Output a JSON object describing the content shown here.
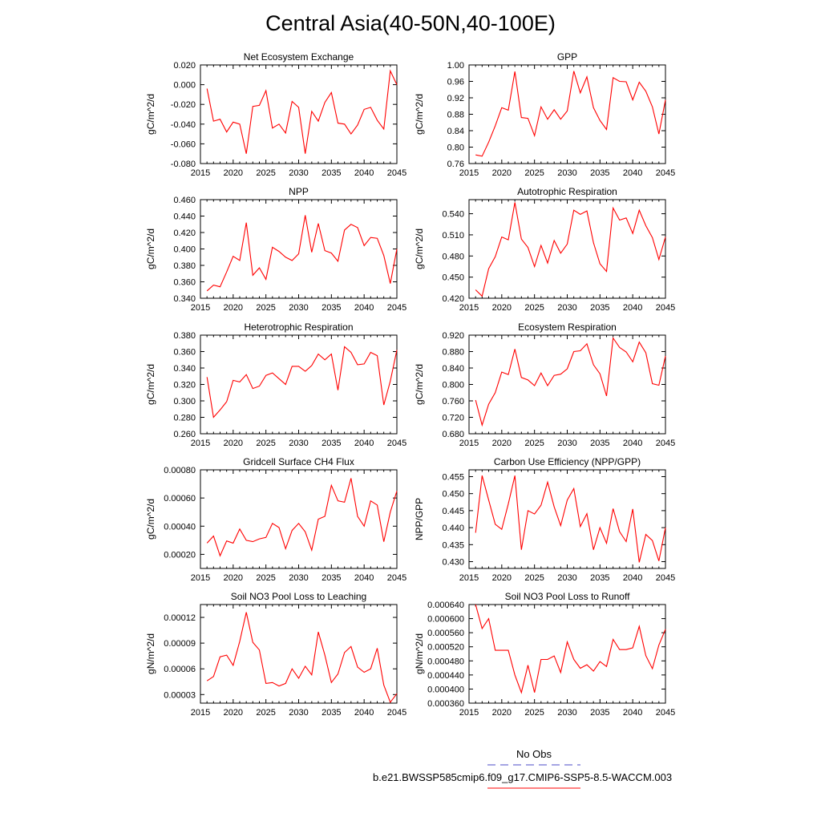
{
  "page_title": "Central Asia(40-50N,40-100E)",
  "legend": {
    "obs_label": "No Obs",
    "obs_color": "#4b4bc8",
    "run_label": "b.e21.BWSSP585cmip6.f09_g17.CMIP6-SSP5-8.5-WACCM.003",
    "run_color": "#ff0000"
  },
  "line_color": "#ff0000",
  "chart_data": [
    {
      "type": "line",
      "title": "Net Ecosystem Exchange",
      "ylabel": "gC/m^2/d",
      "xlim": [
        2015,
        2045
      ],
      "ylim": [
        -0.08,
        0.02
      ],
      "xticks": [
        2015,
        2020,
        2025,
        2030,
        2035,
        2040,
        2045
      ],
      "yticks": [
        "-0.080",
        "-0.060",
        "-0.040",
        "-0.020",
        "0.000",
        "0.020"
      ],
      "x": [
        2016,
        2017,
        2018,
        2019,
        2020,
        2021,
        2022,
        2023,
        2024,
        2025,
        2026,
        2027,
        2028,
        2029,
        2030,
        2031,
        2032,
        2033,
        2034,
        2035,
        2036,
        2037,
        2038,
        2039,
        2040,
        2041,
        2042,
        2043,
        2044,
        2045
      ],
      "values": [
        -0.004,
        -0.037,
        -0.035,
        -0.048,
        -0.038,
        -0.04,
        -0.07,
        -0.022,
        -0.021,
        -0.006,
        -0.044,
        -0.04,
        -0.049,
        -0.017,
        -0.023,
        -0.07,
        -0.027,
        -0.037,
        -0.018,
        -0.008,
        -0.039,
        -0.04,
        -0.05,
        -0.041,
        -0.025,
        -0.023,
        -0.036,
        -0.045,
        0.014,
        0.0
      ]
    },
    {
      "type": "line",
      "title": "GPP",
      "ylabel": "gC/m^2/d",
      "xlim": [
        2015,
        2045
      ],
      "ylim": [
        0.76,
        1.0
      ],
      "xticks": [
        2015,
        2020,
        2025,
        2030,
        2035,
        2040,
        2045
      ],
      "yticks": [
        "0.76",
        "0.80",
        "0.84",
        "0.88",
        "0.92",
        "0.96",
        "1.00"
      ],
      "x": [
        2016,
        2017,
        2018,
        2019,
        2020,
        2021,
        2022,
        2023,
        2024,
        2025,
        2026,
        2027,
        2028,
        2029,
        2030,
        2031,
        2032,
        2033,
        2034,
        2035,
        2036,
        2037,
        2038,
        2039,
        2040,
        2041,
        2042,
        2043,
        2044,
        2045
      ],
      "values": [
        0.781,
        0.778,
        0.812,
        0.852,
        0.896,
        0.89,
        0.984,
        0.872,
        0.87,
        0.828,
        0.898,
        0.868,
        0.891,
        0.868,
        0.888,
        0.985,
        0.932,
        0.971,
        0.896,
        0.865,
        0.843,
        0.969,
        0.96,
        0.959,
        0.915,
        0.958,
        0.936,
        0.898,
        0.832,
        0.915
      ]
    },
    {
      "type": "line",
      "title": "NPP",
      "ylabel": "gC/m^2/d",
      "xlim": [
        2015,
        2045
      ],
      "ylim": [
        0.34,
        0.46
      ],
      "xticks": [
        2015,
        2020,
        2025,
        2030,
        2035,
        2040,
        2045
      ],
      "yticks": [
        "0.340",
        "0.360",
        "0.380",
        "0.400",
        "0.420",
        "0.440",
        "0.460"
      ],
      "x": [
        2016,
        2017,
        2018,
        2019,
        2020,
        2021,
        2022,
        2023,
        2024,
        2025,
        2026,
        2027,
        2028,
        2029,
        2030,
        2031,
        2032,
        2033,
        2034,
        2035,
        2036,
        2037,
        2038,
        2039,
        2040,
        2041,
        2042,
        2043,
        2044,
        2045
      ],
      "values": [
        0.349,
        0.356,
        0.354,
        0.372,
        0.391,
        0.386,
        0.432,
        0.368,
        0.377,
        0.363,
        0.402,
        0.397,
        0.39,
        0.386,
        0.394,
        0.441,
        0.396,
        0.431,
        0.398,
        0.395,
        0.385,
        0.423,
        0.43,
        0.426,
        0.404,
        0.414,
        0.413,
        0.392,
        0.358,
        0.4
      ]
    },
    {
      "type": "line",
      "title": "Autotrophic Respiration",
      "ylabel": "gC/m^2/d",
      "xlim": [
        2015,
        2045
      ],
      "ylim": [
        0.42,
        0.56
      ],
      "xticks": [
        2015,
        2020,
        2025,
        2030,
        2035,
        2040,
        2045
      ],
      "yticks": [
        "0.420",
        "0.450",
        "0.480",
        "0.510",
        "0.540"
      ],
      "x": [
        2016,
        2017,
        2018,
        2019,
        2020,
        2021,
        2022,
        2023,
        2024,
        2025,
        2026,
        2027,
        2028,
        2029,
        2030,
        2031,
        2032,
        2033,
        2034,
        2035,
        2036,
        2037,
        2038,
        2039,
        2040,
        2041,
        2042,
        2043,
        2044,
        2045
      ],
      "values": [
        0.432,
        0.423,
        0.462,
        0.479,
        0.507,
        0.503,
        0.556,
        0.504,
        0.492,
        0.465,
        0.495,
        0.47,
        0.502,
        0.484,
        0.497,
        0.545,
        0.539,
        0.544,
        0.499,
        0.469,
        0.458,
        0.548,
        0.531,
        0.534,
        0.512,
        0.545,
        0.523,
        0.506,
        0.475,
        0.507
      ]
    },
    {
      "type": "line",
      "title": "Heterotrophic Respiration",
      "ylabel": "gC/m^2/d",
      "xlim": [
        2015,
        2045
      ],
      "ylim": [
        0.26,
        0.38
      ],
      "xticks": [
        2015,
        2020,
        2025,
        2030,
        2035,
        2040,
        2045
      ],
      "yticks": [
        "0.260",
        "0.280",
        "0.300",
        "0.320",
        "0.340",
        "0.360",
        "0.380"
      ],
      "x": [
        2016,
        2017,
        2018,
        2019,
        2020,
        2021,
        2022,
        2023,
        2024,
        2025,
        2026,
        2027,
        2028,
        2029,
        2030,
        2031,
        2032,
        2033,
        2034,
        2035,
        2036,
        2037,
        2038,
        2039,
        2040,
        2041,
        2042,
        2043,
        2044,
        2045
      ],
      "values": [
        0.329,
        0.28,
        0.289,
        0.299,
        0.325,
        0.323,
        0.332,
        0.315,
        0.318,
        0.331,
        0.334,
        0.327,
        0.32,
        0.342,
        0.342,
        0.336,
        0.343,
        0.357,
        0.35,
        0.357,
        0.313,
        0.366,
        0.359,
        0.344,
        0.345,
        0.359,
        0.355,
        0.295,
        0.324,
        0.362
      ]
    },
    {
      "type": "line",
      "title": "Ecosystem Respiration",
      "ylabel": "gC/m^2/d",
      "xlim": [
        2015,
        2045
      ],
      "ylim": [
        0.68,
        0.92
      ],
      "xticks": [
        2015,
        2020,
        2025,
        2030,
        2035,
        2040,
        2045
      ],
      "yticks": [
        "0.680",
        "0.720",
        "0.760",
        "0.800",
        "0.840",
        "0.880",
        "0.920"
      ],
      "x": [
        2016,
        2017,
        2018,
        2019,
        2020,
        2021,
        2022,
        2023,
        2024,
        2025,
        2026,
        2027,
        2028,
        2029,
        2030,
        2031,
        2032,
        2033,
        2034,
        2035,
        2036,
        2037,
        2038,
        2039,
        2040,
        2041,
        2042,
        2043,
        2044,
        2045
      ],
      "values": [
        0.762,
        0.701,
        0.752,
        0.78,
        0.83,
        0.824,
        0.886,
        0.817,
        0.811,
        0.797,
        0.828,
        0.797,
        0.822,
        0.825,
        0.838,
        0.88,
        0.882,
        0.899,
        0.848,
        0.826,
        0.772,
        0.913,
        0.89,
        0.879,
        0.855,
        0.903,
        0.877,
        0.802,
        0.798,
        0.869
      ]
    },
    {
      "type": "line",
      "title": "Gridcell Surface CH4 Flux",
      "ylabel": "gC/m^2/d",
      "xlim": [
        2015,
        2045
      ],
      "ylim": [
        0.0001,
        0.0008
      ],
      "xticks": [
        2015,
        2020,
        2025,
        2030,
        2035,
        2040,
        2045
      ],
      "yticks": [
        "0.00020",
        "0.00040",
        "0.00060",
        "0.00080"
      ],
      "x": [
        2016,
        2017,
        2018,
        2019,
        2020,
        2021,
        2022,
        2023,
        2024,
        2025,
        2026,
        2027,
        2028,
        2029,
        2030,
        2031,
        2032,
        2033,
        2034,
        2035,
        2036,
        2037,
        2038,
        2039,
        2040,
        2041,
        2042,
        2043,
        2044,
        2045
      ],
      "values": [
        0.00028,
        0.00033,
        0.00019,
        0.000295,
        0.00028,
        0.00038,
        0.0003,
        0.00029,
        0.00031,
        0.00032,
        0.00042,
        0.00039,
        0.00024,
        0.00037,
        0.00042,
        0.00036,
        0.00023,
        0.00045,
        0.00047,
        0.00069,
        0.00058,
        0.00057,
        0.00074,
        0.00047,
        0.0004,
        0.00058,
        0.00055,
        0.00029,
        0.0005,
        0.00065
      ]
    },
    {
      "type": "line",
      "title": "Carbon Use Efficiency (NPP/GPP)",
      "ylabel": "NPP/GPP",
      "xlim": [
        2015,
        2045
      ],
      "ylim": [
        0.428,
        0.457
      ],
      "xticks": [
        2015,
        2020,
        2025,
        2030,
        2035,
        2040,
        2045
      ],
      "yticks": [
        "0.430",
        "0.435",
        "0.440",
        "0.445",
        "0.450",
        "0.455"
      ],
      "x": [
        2016,
        2017,
        2018,
        2019,
        2020,
        2021,
        2022,
        2023,
        2024,
        2025,
        2026,
        2027,
        2028,
        2029,
        2030,
        2031,
        2032,
        2033,
        2034,
        2035,
        2036,
        2037,
        2038,
        2039,
        2040,
        2041,
        2042,
        2043,
        2044,
        2045
      ],
      "values": [
        0.4385,
        0.4553,
        0.4481,
        0.441,
        0.4395,
        0.447,
        0.4553,
        0.4335,
        0.445,
        0.444,
        0.4466,
        0.4534,
        0.4461,
        0.4406,
        0.4481,
        0.4515,
        0.4403,
        0.4441,
        0.4335,
        0.44,
        0.4354,
        0.4456,
        0.4388,
        0.4359,
        0.4455,
        0.4298,
        0.438,
        0.4362,
        0.4302,
        0.44
      ]
    },
    {
      "type": "line",
      "title": "Soil NO3 Pool Loss to Leaching",
      "ylabel": "gN/m^2/d",
      "xlim": [
        2015,
        2045
      ],
      "ylim": [
        2e-05,
        0.000135
      ],
      "xticks": [
        2015,
        2020,
        2025,
        2030,
        2035,
        2040,
        2045
      ],
      "yticks": [
        "0.00003",
        "0.00006",
        "0.00009",
        "0.00012"
      ],
      "x": [
        2016,
        2017,
        2018,
        2019,
        2020,
        2021,
        2022,
        2023,
        2024,
        2025,
        2026,
        2027,
        2028,
        2029,
        2030,
        2031,
        2032,
        2033,
        2034,
        2035,
        2036,
        2037,
        2038,
        2039,
        2040,
        2041,
        2042,
        2043,
        2044,
        2045
      ],
      "values": [
        4.6e-05,
        5.1e-05,
        7.4e-05,
        7.6e-05,
        6.4e-05,
        9.2e-05,
        0.000126,
        9.1e-05,
        8.2e-05,
        4.3e-05,
        4.4e-05,
        4e-05,
        4.3e-05,
        6e-05,
        4.9e-05,
        6.3e-05,
        5.3e-05,
        0.000103,
        7.6e-05,
        4.4e-05,
        5.4e-05,
        7.9e-05,
        8.6e-05,
        6.2e-05,
        5.6e-05,
        6e-05,
        8.4e-05,
        4.1e-05,
        2.1e-05,
        3.1e-05
      ]
    },
    {
      "type": "line",
      "title": "Soil NO3 Pool Loss to Runoff",
      "ylabel": "gN/m^2/d",
      "xlim": [
        2015,
        2045
      ],
      "ylim": [
        0.00036,
        0.00064
      ],
      "xticks": [
        2015,
        2020,
        2025,
        2030,
        2035,
        2040,
        2045
      ],
      "yticks": [
        "0.000360",
        "0.000400",
        "0.000440",
        "0.000480",
        "0.000520",
        "0.000560",
        "0.000600",
        "0.000640"
      ],
      "x": [
        2016,
        2017,
        2018,
        2019,
        2020,
        2021,
        2022,
        2023,
        2024,
        2025,
        2026,
        2027,
        2028,
        2029,
        2030,
        2031,
        2032,
        2033,
        2034,
        2035,
        2036,
        2037,
        2038,
        2039,
        2040,
        2041,
        2042,
        2043,
        2044,
        2045
      ],
      "values": [
        0.00064,
        0.000572,
        0.0006,
        0.00051,
        0.00051,
        0.00051,
        0.00044,
        0.00039,
        0.000468,
        0.00039,
        0.000484,
        0.000484,
        0.000494,
        0.000447,
        0.000534,
        0.000484,
        0.000459,
        0.000469,
        0.000451,
        0.000478,
        0.000464,
        0.000541,
        0.000512,
        0.000512,
        0.000517,
        0.000578,
        0.000495,
        0.000458,
        0.000525,
        0.00057
      ]
    }
  ]
}
